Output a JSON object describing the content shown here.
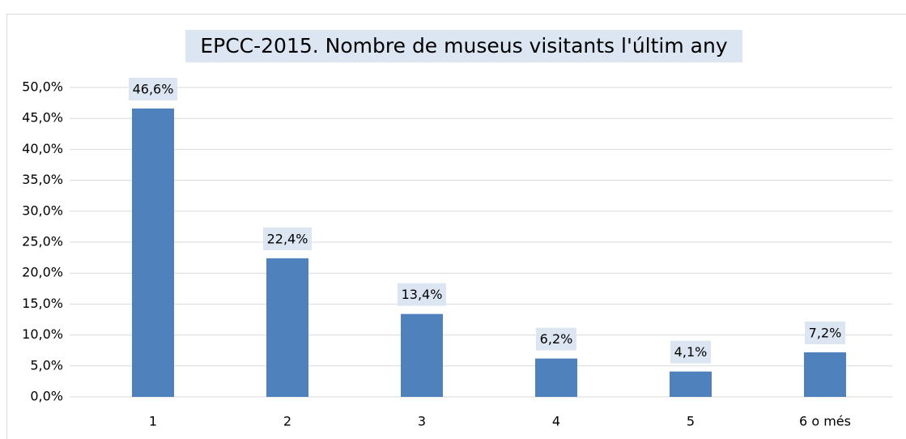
{
  "chart_data": {
    "type": "bar",
    "title": "EPCC-2015. Nombre de museus visitants l'últim any",
    "categories": [
      "1",
      "2",
      "3",
      "4",
      "5",
      "6 o més"
    ],
    "values": [
      46.6,
      22.4,
      13.4,
      6.2,
      4.1,
      7.2
    ],
    "value_labels": [
      "46,6%",
      "22,4%",
      "13,4%",
      "6,2%",
      "4,1%",
      "7,2%"
    ],
    "color": "#4f81bd",
    "ylim": [
      0,
      50
    ],
    "yticks": [
      {
        "value": 0,
        "label": "0,0%"
      },
      {
        "value": 5,
        "label": "5,0%"
      },
      {
        "value": 10,
        "label": "10,0%"
      },
      {
        "value": 15,
        "label": "15,0%"
      },
      {
        "value": 20,
        "label": "20,0%"
      },
      {
        "value": 25,
        "label": "25,0%"
      },
      {
        "value": 30,
        "label": "30,0%"
      },
      {
        "value": 35,
        "label": "35,0%"
      },
      {
        "value": 40,
        "label": "40,0%"
      },
      {
        "value": 45,
        "label": "45,0%"
      },
      {
        "value": 50,
        "label": "50,0%"
      }
    ],
    "grid": true
  }
}
